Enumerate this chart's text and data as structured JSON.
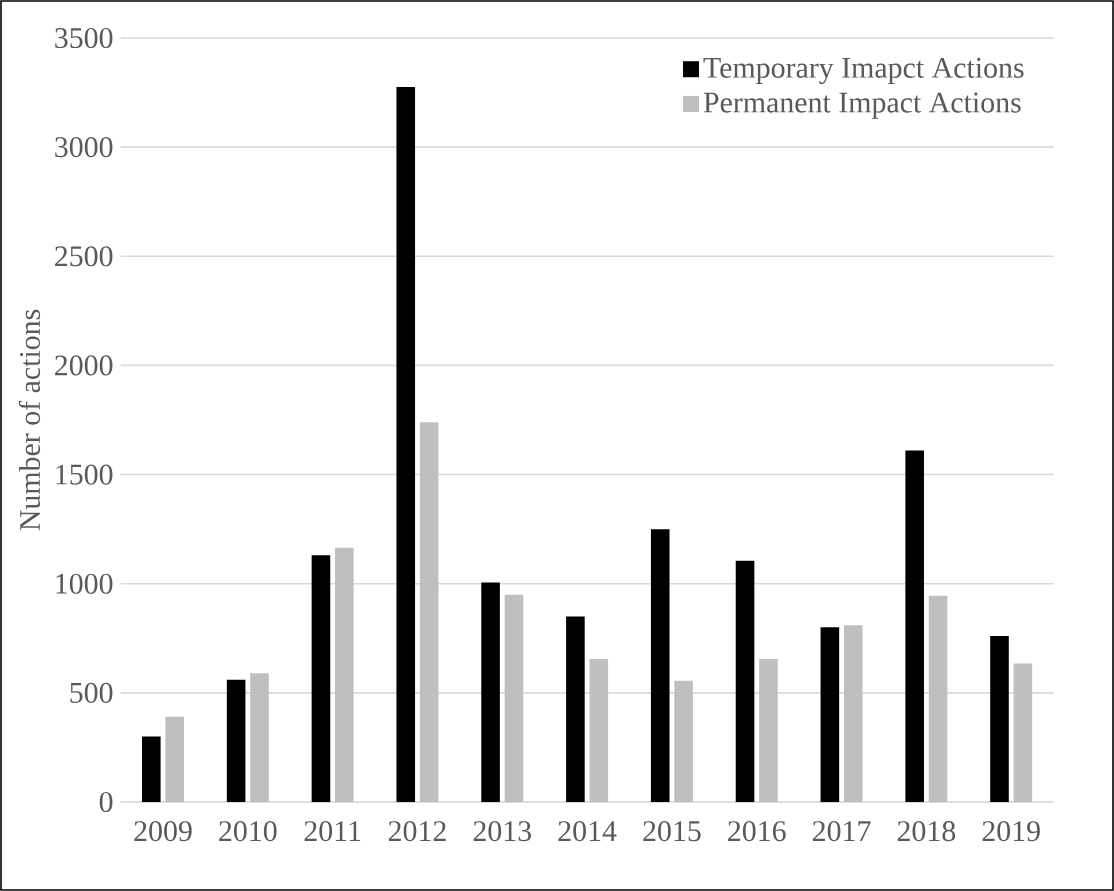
{
  "chart_data": {
    "type": "bar",
    "ylabel": "Number of actions",
    "categories": [
      "2009",
      "2010",
      "2011",
      "2012",
      "2013",
      "2014",
      "2015",
      "2016",
      "2017",
      "2018",
      "2019"
    ],
    "series": [
      {
        "name": "Temporary Imapct Actions",
        "color": "#000000",
        "values": [
          300,
          560,
          1130,
          3275,
          1005,
          850,
          1250,
          1105,
          800,
          1610,
          760
        ]
      },
      {
        "name": "Permanent Impact Actions",
        "color": "#bfbfbf",
        "values": [
          390,
          590,
          1165,
          1740,
          950,
          655,
          555,
          655,
          810,
          945,
          635
        ]
      }
    ],
    "ylim": [
      0,
      3500
    ],
    "yticks": [
      0,
      500,
      1000,
      1500,
      2000,
      2500,
      3000,
      3500
    ],
    "grid": "y",
    "legend": "top right"
  }
}
